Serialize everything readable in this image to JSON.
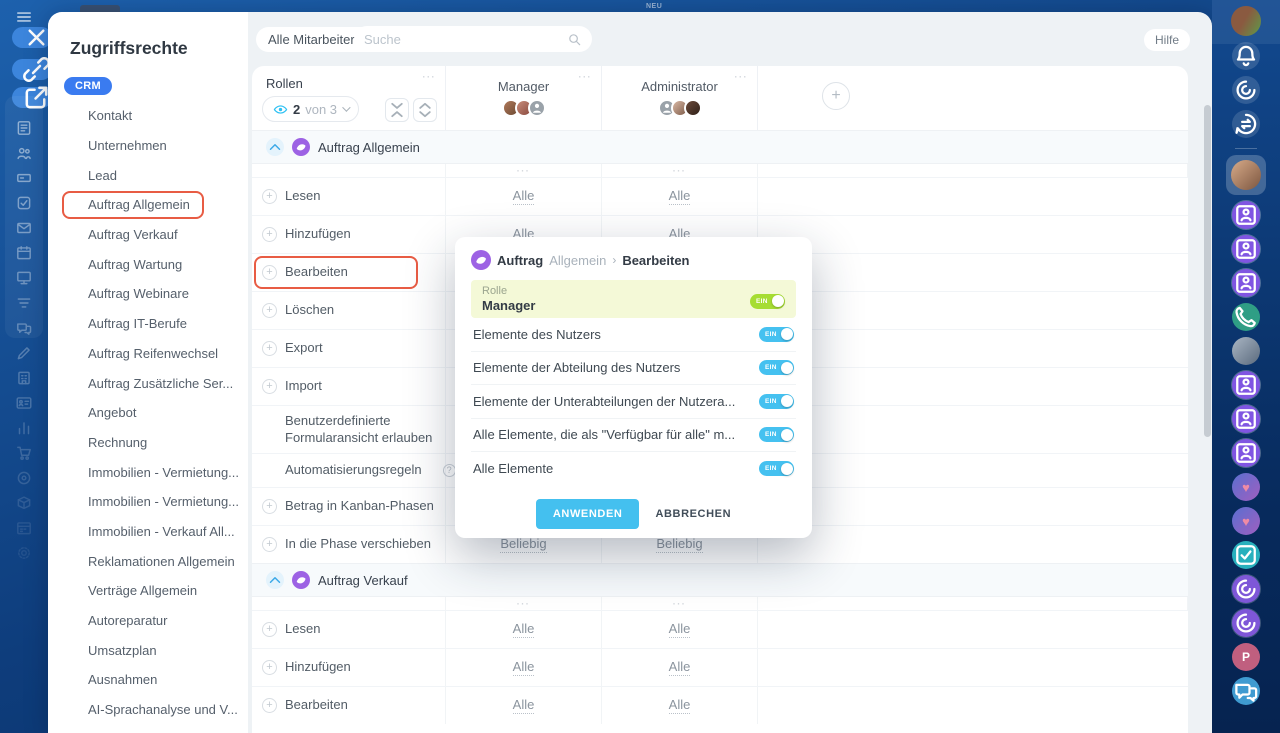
{
  "chrome": {
    "new_badge": "NEU",
    "help_label": "Hilfe"
  },
  "sidebar": {
    "title": "Zugriffsrechte",
    "badge": "CRM",
    "items": [
      {
        "label": "Kontakt"
      },
      {
        "label": "Unternehmen"
      },
      {
        "label": "Lead"
      },
      {
        "label": "Auftrag Allgemein",
        "highlighted": true
      },
      {
        "label": "Auftrag Verkauf"
      },
      {
        "label": "Auftrag Wartung"
      },
      {
        "label": "Auftrag Webinare"
      },
      {
        "label": "Auftrag IT-Berufe"
      },
      {
        "label": "Auftrag Reifenwechsel"
      },
      {
        "label": "Auftrag Zusätzliche Ser..."
      },
      {
        "label": "Angebot"
      },
      {
        "label": "Rechnung"
      },
      {
        "label": "Immobilien - Vermietung..."
      },
      {
        "label": "Immobilien - Vermietung..."
      },
      {
        "label": "Immobilien - Verkauf All..."
      },
      {
        "label": "Reklamationen Allgemein"
      },
      {
        "label": "Verträge Allgemein"
      },
      {
        "label": "Autoreparatur"
      },
      {
        "label": "Umsatzplan"
      },
      {
        "label": "Ausnahmen"
      },
      {
        "label": "AI-Sprachanalyse und V..."
      }
    ]
  },
  "toolbar": {
    "filter_label": "Alle Mitarbeiter",
    "search_placeholder": "Suche"
  },
  "table": {
    "rollen_label": "Rollen",
    "visible_count": "2",
    "visible_of": "von 3",
    "column_menu_glyph": "···",
    "add_column_glyph": "+",
    "columns": [
      {
        "name": "Manager",
        "avatars": [
          "photo-1",
          "photo-2",
          "generic"
        ]
      },
      {
        "name": "Administrator",
        "avatars": [
          "generic",
          "photo-3",
          "photo-4"
        ]
      }
    ],
    "sections": [
      {
        "title": "Auftrag Allgemein",
        "rows": [
          {
            "label": "Lesen",
            "plus": true,
            "values": [
              "Alle",
              "Alle"
            ]
          },
          {
            "label": "Hinzufügen",
            "plus": true,
            "values": [
              "Alle",
              "Alle"
            ]
          },
          {
            "label": "Bearbeiten",
            "plus": true,
            "values": [
              "",
              ""
            ],
            "highlighted": true
          },
          {
            "label": "Löschen",
            "plus": true,
            "values": [
              "",
              ""
            ]
          },
          {
            "label": "Export",
            "plus": true,
            "values": [
              "",
              ""
            ]
          },
          {
            "label": "Import",
            "plus": true,
            "values": [
              "",
              ""
            ]
          },
          {
            "label": "Benutzerdefinierte Formularansicht erlauben",
            "plus": false,
            "twoline": true,
            "values": [
              "",
              ""
            ]
          },
          {
            "label": "Automatisierungsregeln",
            "plus": false,
            "help": true,
            "compact": true,
            "values": [
              "",
              ""
            ]
          },
          {
            "label": "Betrag in Kanban-Phasen",
            "plus": true,
            "values": [
              "",
              ""
            ]
          },
          {
            "label": "In die Phase verschieben",
            "plus": true,
            "values": [
              "Beliebig",
              "Beliebig"
            ]
          }
        ]
      },
      {
        "title": "Auftrag Verkauf",
        "rows": [
          {
            "label": "Lesen",
            "plus": true,
            "values": [
              "Alle",
              "Alle"
            ]
          },
          {
            "label": "Hinzufügen",
            "plus": true,
            "values": [
              "Alle",
              "Alle"
            ]
          },
          {
            "label": "Bearbeiten",
            "plus": true,
            "values": [
              "Alle",
              "Alle"
            ]
          }
        ]
      }
    ]
  },
  "modal": {
    "breadcrumb": {
      "entity": "Auftrag",
      "scope": "Allgemein",
      "separator": "›",
      "action": "Bearbeiten"
    },
    "role_label": "Rolle",
    "role_value": "Manager",
    "toggle_on_label": "EIN",
    "options": [
      "Elemente des Nutzers",
      "Elemente der Abteilung des Nutzers",
      "Elemente der Unterabteilungen der Nutzera...",
      "Alle Elemente, die als \"Verfügbar für alle\" m...",
      "Alle Elemente"
    ],
    "apply_label": "ANWENDEN",
    "cancel_label": "ABBRECHEN"
  },
  "left_rail": {
    "stack": [
      "news",
      "team",
      "drive",
      "tasks",
      "mail",
      "calendar",
      "boards",
      "feed",
      "chats",
      "sign",
      "workspace",
      "contact-card",
      "analytics",
      "shop",
      "target",
      "catalog",
      "schedule",
      "gear"
    ]
  },
  "right_rail": {
    "items": [
      {
        "type": "avatar-user"
      },
      {
        "type": "bell"
      },
      {
        "type": "copilot"
      },
      {
        "type": "history"
      },
      {
        "type": "divider"
      },
      {
        "type": "avatar-active"
      },
      {
        "type": "contact"
      },
      {
        "type": "contact"
      },
      {
        "type": "contact"
      },
      {
        "type": "phone"
      },
      {
        "type": "avatar-cat"
      },
      {
        "type": "contact"
      },
      {
        "type": "contact"
      },
      {
        "type": "contact"
      },
      {
        "type": "avatar-heart"
      },
      {
        "type": "avatar-heart"
      },
      {
        "type": "check"
      },
      {
        "type": "spiral"
      },
      {
        "type": "spiral"
      },
      {
        "type": "letter-p",
        "label": "P"
      },
      {
        "type": "chat"
      }
    ]
  },
  "colors": {
    "crm_badge": "#3a7bf0",
    "toggle_green": "#a6dd33",
    "toggle_blue": "#45c1f0",
    "apply_button": "#44c0ef",
    "highlight_border": "#e85c44",
    "role_row_bg": "#f4f9d7",
    "rail_blue": "#0e3d7c"
  }
}
